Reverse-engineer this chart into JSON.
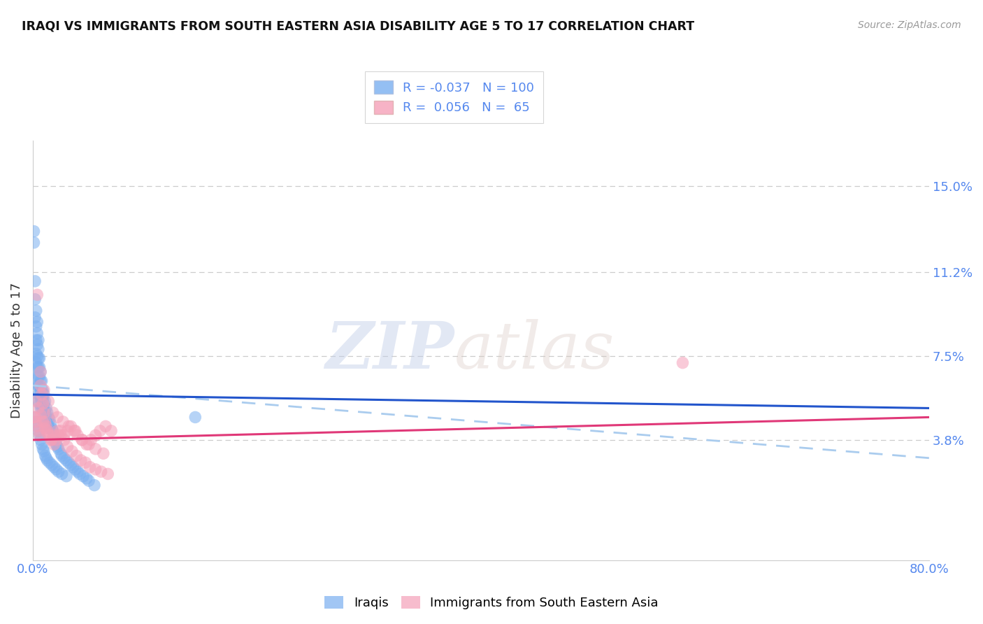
{
  "title": "IRAQI VS IMMIGRANTS FROM SOUTH EASTERN ASIA DISABILITY AGE 5 TO 17 CORRELATION CHART",
  "source": "Source: ZipAtlas.com",
  "ylabel": "Disability Age 5 to 17",
  "y_tick_labels_right": [
    "3.8%",
    "7.5%",
    "11.2%",
    "15.0%"
  ],
  "y_tick_values_right": [
    0.038,
    0.075,
    0.112,
    0.15
  ],
  "x_min": 0.0,
  "x_max": 0.8,
  "y_min": -0.015,
  "y_max": 0.17,
  "legend1_R": "-0.037",
  "legend1_N": "100",
  "legend2_R": "0.056",
  "legend2_N": "65",
  "color_iraqi": "#7aaff0",
  "color_sea": "#f5a0b8",
  "color_iraqi_line": "#2255cc",
  "color_sea_line": "#e03878",
  "color_dashed": "#aaccee",
  "color_axis_labels": "#5588ee",
  "color_title": "#111111",
  "watermark": "ZIPatlas",
  "iraqi_x": [
    0.001,
    0.001,
    0.002,
    0.002,
    0.002,
    0.003,
    0.003,
    0.003,
    0.003,
    0.003,
    0.004,
    0.004,
    0.004,
    0.004,
    0.004,
    0.004,
    0.004,
    0.005,
    0.005,
    0.005,
    0.005,
    0.005,
    0.005,
    0.005,
    0.005,
    0.006,
    0.006,
    0.006,
    0.006,
    0.006,
    0.006,
    0.007,
    0.007,
    0.007,
    0.007,
    0.007,
    0.008,
    0.008,
    0.008,
    0.008,
    0.009,
    0.009,
    0.009,
    0.01,
    0.01,
    0.01,
    0.01,
    0.011,
    0.011,
    0.012,
    0.012,
    0.013,
    0.013,
    0.014,
    0.014,
    0.015,
    0.015,
    0.016,
    0.017,
    0.018,
    0.018,
    0.019,
    0.02,
    0.021,
    0.022,
    0.023,
    0.025,
    0.026,
    0.028,
    0.03,
    0.032,
    0.034,
    0.036,
    0.038,
    0.04,
    0.042,
    0.045,
    0.048,
    0.05,
    0.055,
    0.002,
    0.003,
    0.004,
    0.005,
    0.006,
    0.007,
    0.008,
    0.009,
    0.01,
    0.011,
    0.012,
    0.013,
    0.015,
    0.017,
    0.019,
    0.021,
    0.023,
    0.026,
    0.03,
    0.145
  ],
  "iraqi_y": [
    0.13,
    0.125,
    0.108,
    0.1,
    0.092,
    0.095,
    0.088,
    0.082,
    0.076,
    0.072,
    0.09,
    0.085,
    0.08,
    0.075,
    0.07,
    0.066,
    0.062,
    0.082,
    0.078,
    0.074,
    0.07,
    0.066,
    0.062,
    0.058,
    0.055,
    0.074,
    0.07,
    0.066,
    0.062,
    0.058,
    0.054,
    0.068,
    0.064,
    0.06,
    0.056,
    0.052,
    0.064,
    0.06,
    0.056,
    0.052,
    0.06,
    0.056,
    0.052,
    0.058,
    0.054,
    0.05,
    0.046,
    0.055,
    0.051,
    0.052,
    0.048,
    0.05,
    0.046,
    0.048,
    0.044,
    0.047,
    0.043,
    0.045,
    0.043,
    0.042,
    0.038,
    0.04,
    0.038,
    0.036,
    0.035,
    0.034,
    0.032,
    0.031,
    0.03,
    0.029,
    0.028,
    0.027,
    0.026,
    0.025,
    0.024,
    0.023,
    0.022,
    0.021,
    0.02,
    0.018,
    0.048,
    0.046,
    0.044,
    0.042,
    0.04,
    0.038,
    0.036,
    0.034,
    0.033,
    0.031,
    0.03,
    0.029,
    0.028,
    0.027,
    0.026,
    0.025,
    0.024,
    0.023,
    0.022,
    0.048
  ],
  "sea_x": [
    0.002,
    0.003,
    0.004,
    0.005,
    0.006,
    0.007,
    0.008,
    0.009,
    0.01,
    0.011,
    0.012,
    0.013,
    0.015,
    0.017,
    0.019,
    0.021,
    0.023,
    0.025,
    0.028,
    0.031,
    0.034,
    0.037,
    0.04,
    0.044,
    0.048,
    0.052,
    0.056,
    0.06,
    0.065,
    0.07,
    0.003,
    0.005,
    0.007,
    0.009,
    0.011,
    0.013,
    0.016,
    0.019,
    0.022,
    0.025,
    0.028,
    0.031,
    0.035,
    0.039,
    0.043,
    0.047,
    0.051,
    0.056,
    0.061,
    0.067,
    0.004,
    0.007,
    0.01,
    0.014,
    0.018,
    0.022,
    0.027,
    0.032,
    0.038,
    0.044,
    0.05,
    0.056,
    0.063,
    0.58,
    0.001
  ],
  "sea_y": [
    0.048,
    0.046,
    0.044,
    0.042,
    0.04,
    0.062,
    0.058,
    0.054,
    0.05,
    0.046,
    0.044,
    0.042,
    0.04,
    0.038,
    0.036,
    0.038,
    0.04,
    0.042,
    0.04,
    0.042,
    0.044,
    0.042,
    0.04,
    0.038,
    0.036,
    0.038,
    0.04,
    0.042,
    0.044,
    0.042,
    0.055,
    0.052,
    0.049,
    0.046,
    0.043,
    0.041,
    0.038,
    0.04,
    0.042,
    0.04,
    0.038,
    0.035,
    0.033,
    0.031,
    0.029,
    0.028,
    0.026,
    0.025,
    0.024,
    0.023,
    0.102,
    0.068,
    0.06,
    0.055,
    0.05,
    0.048,
    0.046,
    0.044,
    0.042,
    0.038,
    0.036,
    0.034,
    0.032,
    0.072,
    0.048
  ],
  "iraqi_line_x0": 0.0,
  "iraqi_line_x1": 0.8,
  "iraqi_line_y0": 0.058,
  "iraqi_line_y1": 0.052,
  "sea_line_x0": 0.0,
  "sea_line_x1": 0.8,
  "sea_line_y0": 0.038,
  "sea_line_y1": 0.048,
  "dash_line_x0": 0.0,
  "dash_line_x1": 0.8,
  "dash_line_y0": 0.062,
  "dash_line_y1": 0.03
}
